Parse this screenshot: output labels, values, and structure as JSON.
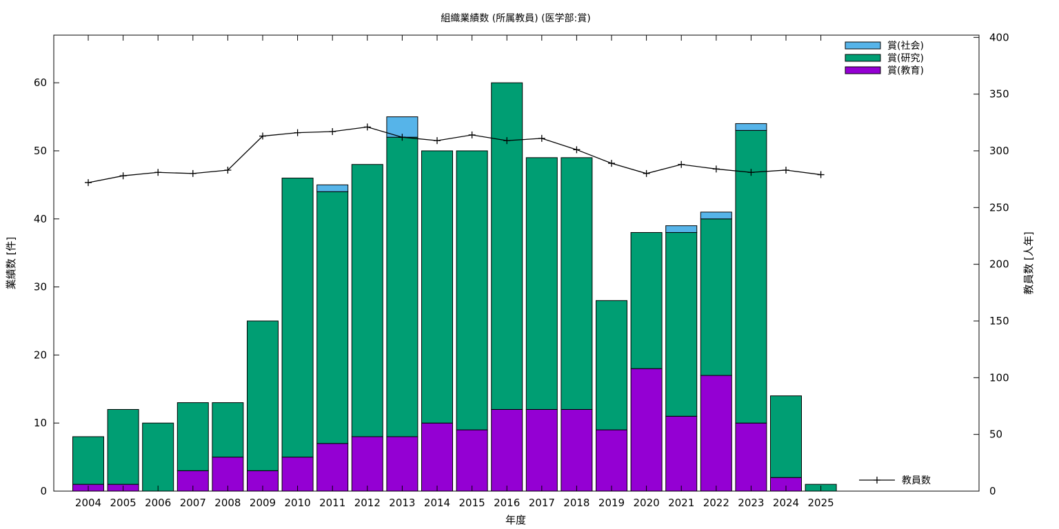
{
  "chart_data": {
    "type": "bar",
    "stacked": true,
    "title": "組織業績数 (所属教員) (医学部:賞)",
    "xlabel": "年度",
    "ylabel": "業績数 [件]",
    "y2label": "教員数 [人年]",
    "ylim": [
      0,
      67
    ],
    "y2lim": [
      0,
      402
    ],
    "yticks": [
      "0",
      "10",
      "20",
      "30",
      "40",
      "50",
      "60"
    ],
    "y2ticks": [
      "0",
      "50",
      "100",
      "150",
      "200",
      "250",
      "300",
      "350",
      "400"
    ],
    "grid": false,
    "legend_position": "top-right",
    "categories": [
      "2004",
      "2005",
      "2006",
      "2007",
      "2008",
      "2009",
      "2010",
      "2011",
      "2012",
      "2013",
      "2014",
      "2015",
      "2016",
      "2017",
      "2018",
      "2019",
      "2020",
      "2021",
      "2022",
      "2023",
      "2024",
      "2025"
    ],
    "series": [
      {
        "name": "賞(教育)",
        "color": "#9400d3",
        "values": [
          1,
          1,
          0,
          3,
          5,
          3,
          5,
          7,
          8,
          8,
          10,
          9,
          12,
          12,
          12,
          9,
          18,
          11,
          17,
          10,
          2,
          0
        ]
      },
      {
        "name": "賞(研究)",
        "color": "#009e73",
        "values": [
          7,
          11,
          10,
          10,
          8,
          22,
          41,
          37,
          40,
          44,
          40,
          41,
          48,
          37,
          37,
          19,
          20,
          27,
          23,
          43,
          12,
          1
        ]
      },
      {
        "name": "賞(社会)",
        "color": "#56b4e9",
        "values": [
          0,
          0,
          0,
          0,
          0,
          0,
          0,
          1,
          0,
          3,
          0,
          0,
          0,
          0,
          0,
          0,
          0,
          1,
          1,
          1,
          0,
          0
        ]
      }
    ],
    "line_series": {
      "name": "教員数",
      "axis": "right",
      "color": "#000000",
      "values": [
        272,
        278,
        281,
        280,
        283,
        313,
        316,
        317,
        321,
        312,
        309,
        314,
        309,
        311,
        301,
        289,
        280,
        288,
        284,
        281,
        283,
        279
      ]
    }
  }
}
